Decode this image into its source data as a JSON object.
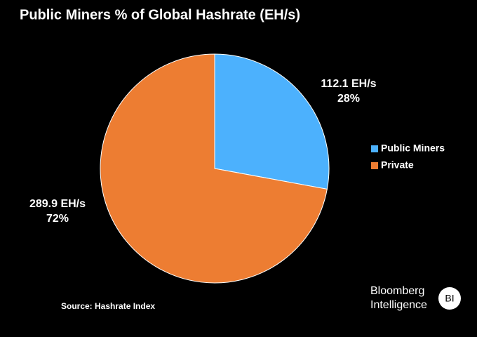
{
  "chart_data": {
    "type": "pie",
    "title": "Public Miners % of Global Hashrate (EH/s)",
    "series": [
      {
        "name": "Public Miners",
        "color": "#4cb1fd",
        "values": [
          112.1
        ],
        "value_labels": [
          "112.1 EH/s"
        ],
        "percent_labels": [
          "28%"
        ]
      },
      {
        "name": "Private",
        "color": "#ed7d32",
        "values": [
          289.9
        ],
        "value_labels": [
          "289.9 EH/s"
        ],
        "percent_labels": [
          "72%"
        ]
      }
    ],
    "legend": "right",
    "source": "Source: Hashrate Index"
  },
  "branding": {
    "line1": "Bloomberg",
    "line2": "Intelligence",
    "badge": "BI"
  }
}
